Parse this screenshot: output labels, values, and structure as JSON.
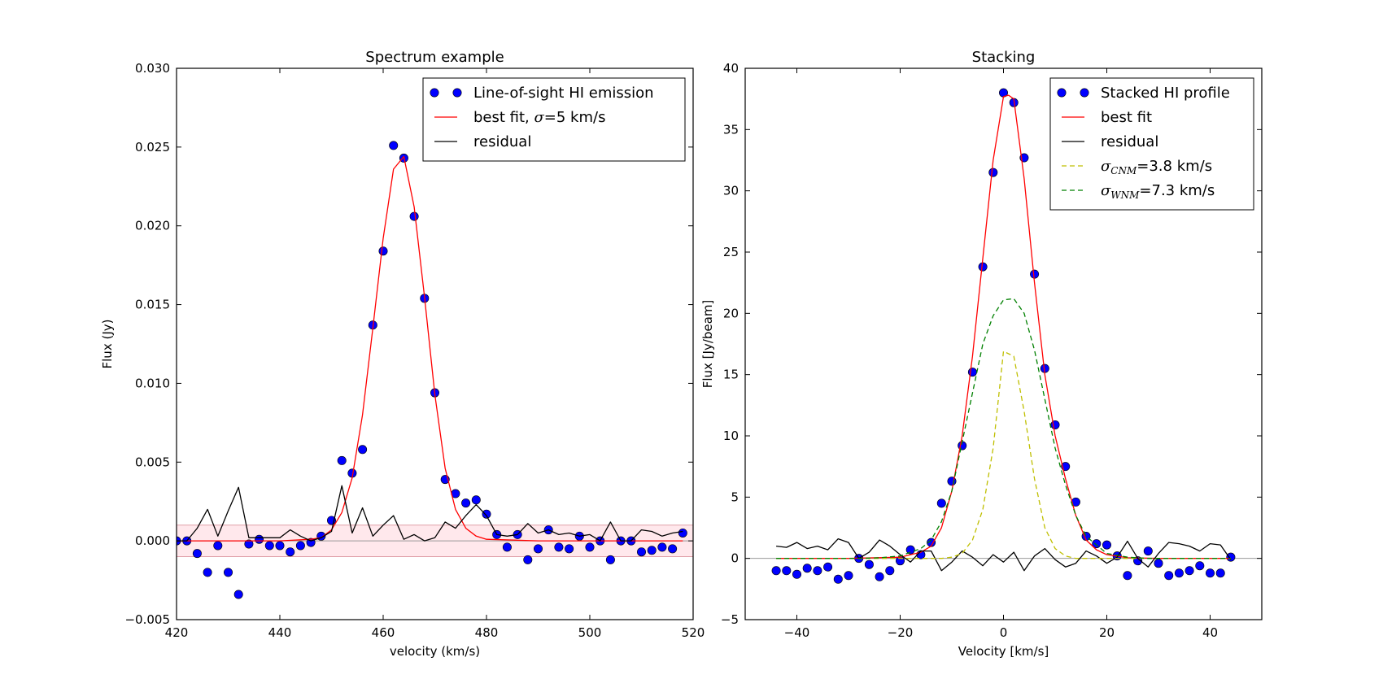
{
  "chart_data": [
    {
      "type": "scatter",
      "title": "Spectrum example",
      "xlabel": "velocity (km/s)",
      "ylabel": "Flux (Jy)",
      "xlim": [
        420,
        520
      ],
      "ylim": [
        -0.005,
        0.03
      ],
      "xticks": [
        420,
        440,
        460,
        480,
        500,
        520
      ],
      "xtick_labels": [
        "420",
        "440",
        "460",
        "480",
        "500",
        "520"
      ],
      "yticks": [
        -0.005,
        0.0,
        0.005,
        0.01,
        0.015,
        0.02,
        0.025,
        0.03
      ],
      "ytick_labels": [
        "−0.005",
        "0.000",
        "0.005",
        "0.010",
        "0.015",
        "0.020",
        "0.025",
        "0.030"
      ],
      "legend_position": "top-right",
      "legend": [
        {
          "label": "Line-of-sight HI emission",
          "kind": "marker",
          "color": "#0000ff"
        },
        {
          "label_pre": "best fit, ",
          "label_sym": "σ",
          "label_post": "=5 km/s",
          "kind": "line",
          "color": "#ff0000"
        },
        {
          "label": "residual",
          "kind": "line",
          "color": "#000000"
        }
      ],
      "noise_band": {
        "low": -0.001,
        "high": 0.001,
        "fill": "#ffe8ec",
        "edge": "#e0a0a8"
      },
      "series": [
        {
          "name": "Line-of-sight HI emission",
          "style": "marker",
          "color": "#0000ff",
          "x": [
            420,
            422,
            424,
            426,
            428,
            430,
            432,
            434,
            436,
            438,
            440,
            442,
            444,
            446,
            448,
            450,
            452,
            454,
            456,
            458,
            460,
            462,
            464,
            466,
            468,
            470,
            472,
            474,
            476,
            478,
            480,
            482,
            484,
            486,
            488,
            490,
            492,
            494,
            496,
            498,
            500,
            502,
            504,
            506,
            508,
            510,
            512,
            514,
            516,
            518
          ],
          "y": [
            0.0,
            0.0,
            -0.0008,
            -0.002,
            -0.0003,
            -0.002,
            -0.0034,
            -0.0002,
            0.0001,
            -0.0003,
            -0.0003,
            -0.0007,
            -0.0003,
            -0.0001,
            0.0003,
            0.0013,
            0.0051,
            0.0043,
            0.0058,
            0.0137,
            0.0184,
            0.0251,
            0.0243,
            0.0206,
            0.0154,
            0.0094,
            0.0039,
            0.003,
            0.0024,
            0.0026,
            0.0017,
            0.0004,
            -0.0004,
            0.0004,
            -0.0012,
            -0.0005,
            0.0007,
            -0.0004,
            -0.0005,
            0.0003,
            -0.0004,
            0.0,
            -0.0012,
            0.0,
            0.0,
            -0.0007,
            -0.0006,
            -0.0004,
            -0.0005,
            0.0005
          ]
        },
        {
          "name": "best fit",
          "style": "line",
          "color": "#ff0000",
          "x": [
            420,
            430,
            440,
            446,
            448,
            450,
            452,
            454,
            456,
            458,
            460,
            462,
            464,
            466,
            468,
            470,
            472,
            474,
            476,
            478,
            480,
            490,
            500,
            510,
            518
          ],
          "y": [
            0.0,
            0.0,
            0.0,
            0.0001,
            0.0002,
            0.0007,
            0.0018,
            0.004,
            0.008,
            0.0135,
            0.0192,
            0.0236,
            0.0244,
            0.0212,
            0.0155,
            0.0093,
            0.0046,
            0.002,
            0.0008,
            0.0003,
            0.0001,
            0.0,
            0.0,
            0.0,
            0.0
          ]
        },
        {
          "name": "residual",
          "style": "line",
          "color": "#000000",
          "x": [
            420,
            422,
            424,
            426,
            428,
            430,
            432,
            434,
            436,
            438,
            440,
            442,
            444,
            446,
            448,
            450,
            452,
            454,
            456,
            458,
            460,
            462,
            464,
            466,
            468,
            470,
            472,
            474,
            476,
            478,
            480,
            482,
            484,
            486,
            488,
            490,
            492,
            494,
            496,
            498,
            500,
            502,
            504,
            506,
            508,
            510,
            512,
            514,
            516,
            518
          ],
          "y": [
            0.0,
            0.0,
            0.0008,
            0.002,
            0.0003,
            0.0019,
            0.0034,
            0.0002,
            0.0002,
            0.0002,
            0.0002,
            0.0007,
            0.0003,
            0.0,
            0.0002,
            0.0006,
            0.0035,
            0.0005,
            0.0021,
            0.0003,
            0.001,
            0.0016,
            0.0001,
            0.0004,
            0.0,
            0.0002,
            0.0012,
            0.0008,
            0.0016,
            0.0023,
            0.0016,
            0.0004,
            0.0003,
            0.0004,
            0.0011,
            0.0005,
            0.0007,
            0.0004,
            0.0005,
            0.0003,
            0.0004,
            0.0,
            0.0012,
            0.0,
            0.0,
            0.0007,
            0.0006,
            0.0003,
            0.0005,
            0.0006
          ]
        }
      ]
    },
    {
      "type": "scatter",
      "title": "Stacking",
      "xlabel": "Velocity [km/s]",
      "ylabel": "Flux [Jy/beam]",
      "xlim": [
        -50,
        50
      ],
      "ylim": [
        -5,
        40
      ],
      "xticks": [
        -40,
        -20,
        0,
        20,
        40
      ],
      "xtick_labels": [
        "−40",
        "−20",
        "0",
        "20",
        "40"
      ],
      "yticks": [
        -5,
        0,
        5,
        10,
        15,
        20,
        25,
        30,
        35,
        40
      ],
      "ytick_labels": [
        "−5",
        "0",
        "5",
        "10",
        "15",
        "20",
        "25",
        "30",
        "35",
        "40"
      ],
      "legend_position": "top-right",
      "legend": [
        {
          "label": "Stacked HI profile",
          "kind": "marker",
          "color": "#0000ff"
        },
        {
          "label": "best fit",
          "kind": "line",
          "color": "#ff0000"
        },
        {
          "label": "residual",
          "kind": "line",
          "color": "#000000"
        },
        {
          "label_sym": "σ",
          "label_sub": "CNM",
          "label_post": "=3.8 km/s",
          "kind": "dashed",
          "color": "#bfbf00"
        },
        {
          "label_sym": "σ",
          "label_sub": "WNM",
          "label_post": "=7.3 km/s",
          "kind": "dashed",
          "color": "#008000"
        }
      ],
      "series": [
        {
          "name": "Stacked HI profile",
          "style": "marker",
          "color": "#0000ff",
          "x": [
            -44,
            -42,
            -40,
            -38,
            -36,
            -34,
            -32,
            -30,
            -28,
            -26,
            -24,
            -22,
            -20,
            -18,
            -16,
            -14,
            -12,
            -10,
            -8,
            -6,
            -4,
            -2,
            0,
            2,
            4,
            6,
            8,
            10,
            12,
            14,
            16,
            18,
            20,
            22,
            24,
            26,
            28,
            30,
            32,
            34,
            36,
            38,
            40,
            42,
            44
          ],
          "y": [
            -1.0,
            -1.0,
            -1.3,
            -0.8,
            -1.0,
            -0.7,
            -1.7,
            -1.4,
            0.0,
            -0.5,
            -1.5,
            -1.0,
            -0.2,
            0.7,
            0.3,
            1.3,
            4.5,
            6.3,
            9.2,
            15.2,
            23.8,
            31.5,
            38.0,
            37.2,
            32.7,
            23.2,
            15.5,
            10.9,
            7.5,
            4.6,
            1.8,
            1.2,
            1.1,
            0.2,
            -1.4,
            -0.2,
            0.6,
            -0.4,
            -1.4,
            -1.2,
            -1.0,
            -0.6,
            -1.2,
            -1.2,
            0.1
          ]
        },
        {
          "name": "best fit",
          "style": "line",
          "color": "#ff0000",
          "x": [
            -44,
            -30,
            -20,
            -16,
            -14,
            -12,
            -10,
            -8,
            -6,
            -4,
            -2,
            0,
            1,
            2,
            4,
            6,
            8,
            10,
            12,
            14,
            16,
            18,
            20,
            24,
            30,
            44
          ],
          "y": [
            0.0,
            0.0,
            0.1,
            0.5,
            1.0,
            2.5,
            5.5,
            10.0,
            16.5,
            24.5,
            32.5,
            37.7,
            37.8,
            37.5,
            31.0,
            22.5,
            15.0,
            10.0,
            6.5,
            3.5,
            1.5,
            0.7,
            0.3,
            0.05,
            0.0,
            0.0
          ]
        },
        {
          "name": "residual",
          "style": "line",
          "color": "#000000",
          "x": [
            -44,
            -42,
            -40,
            -38,
            -36,
            -34,
            -32,
            -30,
            -28,
            -26,
            -24,
            -22,
            -20,
            -18,
            -16,
            -14,
            -12,
            -10,
            -8,
            -6,
            -4,
            -2,
            0,
            2,
            4,
            6,
            8,
            10,
            12,
            14,
            16,
            18,
            20,
            22,
            24,
            26,
            28,
            30,
            32,
            34,
            36,
            38,
            40,
            42,
            44
          ],
          "y": [
            1.0,
            0.9,
            1.3,
            0.8,
            1.0,
            0.7,
            1.6,
            1.3,
            0.0,
            0.5,
            1.5,
            1.0,
            0.3,
            -0.3,
            0.6,
            0.6,
            -1.0,
            -0.3,
            0.6,
            0.1,
            -0.6,
            0.3,
            -0.3,
            0.5,
            -1.0,
            0.2,
            0.8,
            -0.1,
            -0.7,
            -0.4,
            0.6,
            0.2,
            -0.4,
            0.1,
            1.4,
            0.0,
            -0.7,
            0.4,
            1.3,
            1.2,
            1.0,
            0.6,
            1.2,
            1.1,
            -0.1
          ]
        },
        {
          "name": "sigma_CNM",
          "style": "dashed",
          "color": "#bfbf00",
          "x": [
            -44,
            -12,
            -10,
            -8,
            -6,
            -4,
            -2,
            0,
            2,
            4,
            6,
            8,
            10,
            12,
            14,
            44
          ],
          "y": [
            0.0,
            0.0,
            0.1,
            0.4,
            1.5,
            4.0,
            9.0,
            16.9,
            16.5,
            12.0,
            6.5,
            2.5,
            0.8,
            0.2,
            0.0,
            0.0
          ]
        },
        {
          "name": "sigma_WNM",
          "style": "dashed",
          "color": "#008000",
          "x": [
            -44,
            -28,
            -24,
            -20,
            -16,
            -14,
            -12,
            -10,
            -8,
            -6,
            -4,
            -2,
            0,
            2,
            4,
            6,
            8,
            10,
            12,
            14,
            16,
            20,
            24,
            28,
            44
          ],
          "y": [
            0.0,
            0.0,
            0.05,
            0.2,
            0.8,
            1.5,
            3.0,
            5.5,
            9.5,
            13.5,
            17.5,
            19.8,
            21.1,
            21.2,
            20.0,
            17.0,
            13.0,
            9.0,
            6.0,
            3.5,
            1.8,
            0.4,
            0.1,
            0.0,
            0.0
          ]
        }
      ]
    }
  ]
}
